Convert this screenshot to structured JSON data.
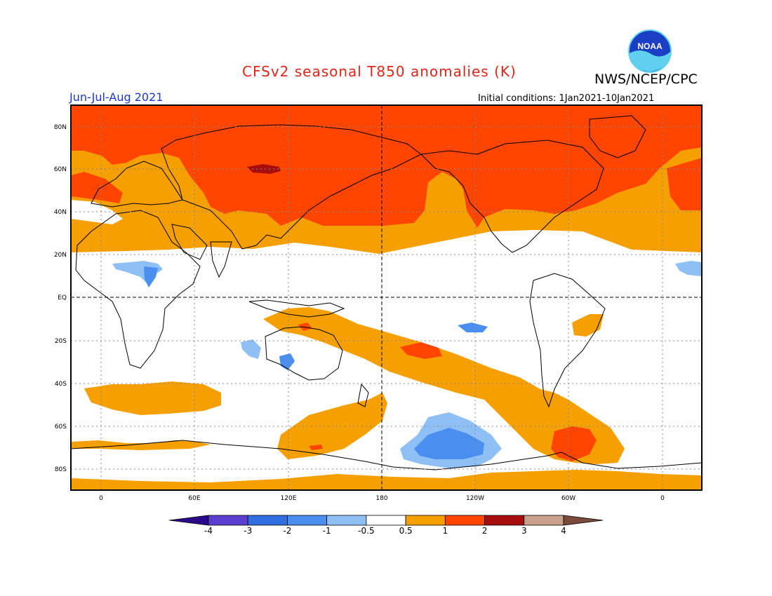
{
  "title": "CFSv2 seasonal T850 anomalies (K)",
  "agency": "NWS/NCEP/CPC",
  "logo_text": "NOAA",
  "season": "Jun-Jul-Aug 2021",
  "initial_conditions": "Initial conditions: 1Jan2021-10Jan2021",
  "lat_labels": [
    "80N",
    "60N",
    "40N",
    "20N",
    "EQ",
    "20S",
    "40S",
    "60S",
    "80S"
  ],
  "lon_labels": [
    "0",
    "60E",
    "120E",
    "180",
    "120W",
    "60W",
    "0"
  ],
  "colorbar": {
    "labels": [
      "-4",
      "-3",
      "-2",
      "-1",
      "-0.5",
      "0.5",
      "1",
      "2",
      "3",
      "4"
    ],
    "colors": [
      "#2a0a8a",
      "#5b3fd0",
      "#2f6de0",
      "#4a8ff0",
      "#8ec0f6",
      "#ffffff",
      "#f5a000",
      "#ff4500",
      "#a80d0d",
      "#c9a08c",
      "#7a4b3a"
    ]
  },
  "anomaly_colors": {
    "weak_warm": "#f5a000",
    "moderate_warm": "#ff4500",
    "strong_warm": "#a80d0d",
    "weak_cool": "#8ec0f6",
    "moderate_cool": "#4a8ff0"
  }
}
